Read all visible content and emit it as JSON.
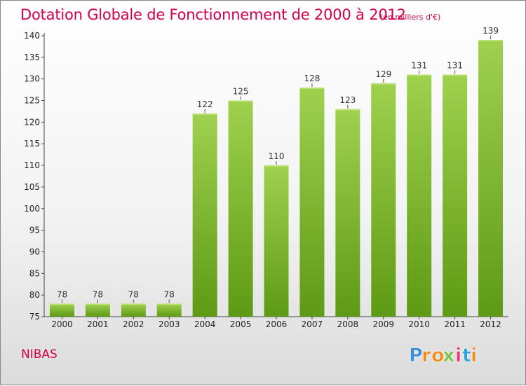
{
  "chart_title": "Dotation Globale de Fonctionnement de 2000 à 2012",
  "chart_unit": "(en milliers d'€)",
  "place_name": "NIBAS",
  "brand": {
    "letters": [
      "P",
      "r",
      "o",
      "x",
      "i",
      "t",
      "i"
    ],
    "letter_colors": [
      "#3b8fd6",
      "#f08a1c",
      "#f08a1c",
      "#7cc142",
      "#e23a7a",
      "#2aa3d8",
      "#f08a1c"
    ]
  },
  "colors": {
    "title": "#d2004a",
    "bar_light": "#9fd14f",
    "bar_dark": "#5e9a15"
  },
  "chart_data": {
    "type": "bar",
    "title": "Dotation Globale de Fonctionnement de 2000 à 2012",
    "subtitle": "(en milliers d'€)",
    "categories": [
      "2000",
      "2001",
      "2002",
      "2003",
      "2004",
      "2005",
      "2006",
      "2007",
      "2008",
      "2009",
      "2010",
      "2011",
      "2012"
    ],
    "values": [
      78,
      78,
      78,
      78,
      122,
      125,
      110,
      128,
      123,
      129,
      131,
      131,
      139
    ],
    "ylim": [
      75,
      140
    ],
    "yticks": [
      75,
      80,
      85,
      90,
      95,
      100,
      105,
      110,
      115,
      120,
      125,
      130,
      135,
      140
    ],
    "grid": false,
    "data_labels": true
  }
}
